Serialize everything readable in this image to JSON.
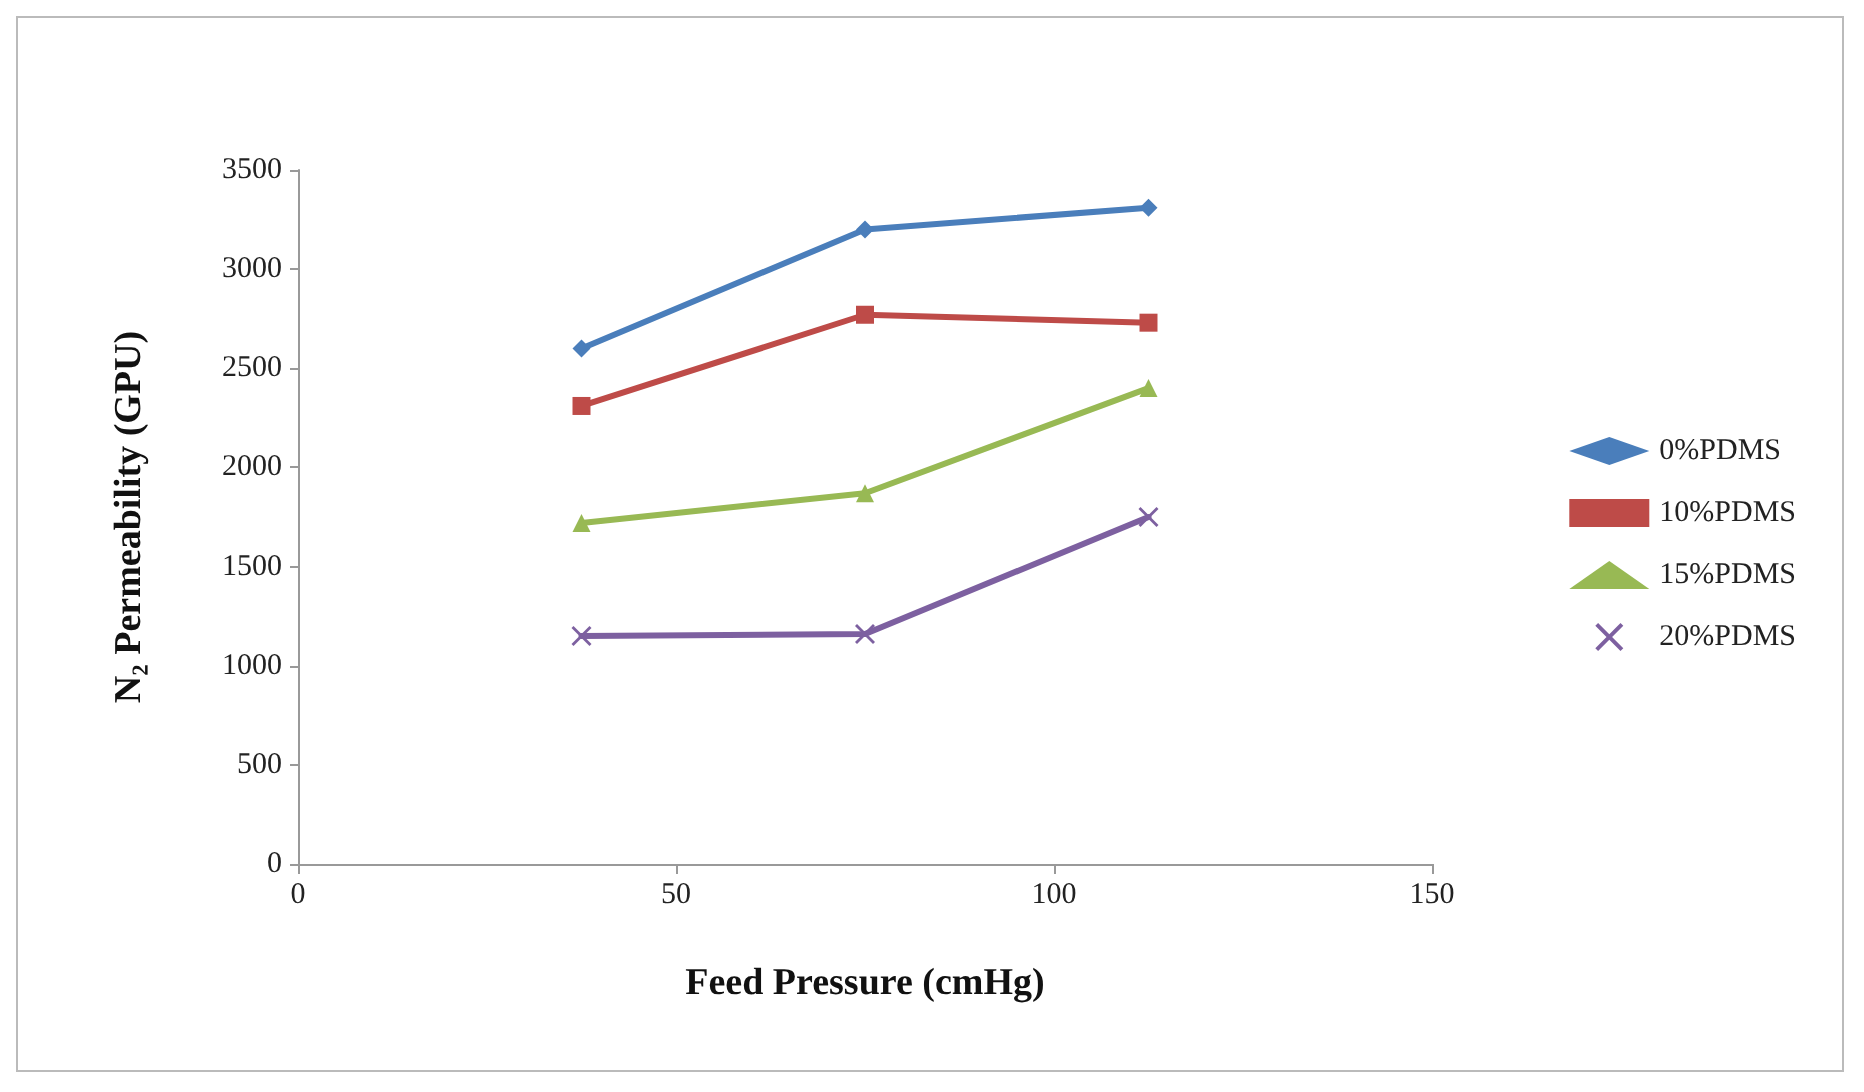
{
  "chart_data": {
    "type": "line",
    "xlabel": "Feed Pressure (cmHg)",
    "ylabel": "N₂ Permeability (GPU)",
    "x": [
      37.5,
      75,
      112.5
    ],
    "series": [
      {
        "name": "0%PDMS",
        "color": "#4a7ebb",
        "marker": "diamond",
        "values": [
          2600,
          3200,
          3310
        ]
      },
      {
        "name": "10%PDMS",
        "color": "#be4b48",
        "marker": "square",
        "values": [
          2310,
          2770,
          2730
        ]
      },
      {
        "name": "15%PDMS",
        "color": "#98b954",
        "marker": "triangle",
        "values": [
          1720,
          1870,
          2400
        ]
      },
      {
        "name": "20%PDMS",
        "color": "#7d60a0",
        "marker": "cross",
        "values": [
          1150,
          1160,
          1750
        ]
      }
    ],
    "xlim": [
      0,
      150
    ],
    "xticks": [
      0,
      50,
      100,
      150
    ],
    "ylim": [
      0,
      3500
    ],
    "yticks": [
      0,
      500,
      1000,
      1500,
      2000,
      2500,
      3000,
      3500
    ],
    "grid": false,
    "legend": "right",
    "line_style": "solid"
  }
}
